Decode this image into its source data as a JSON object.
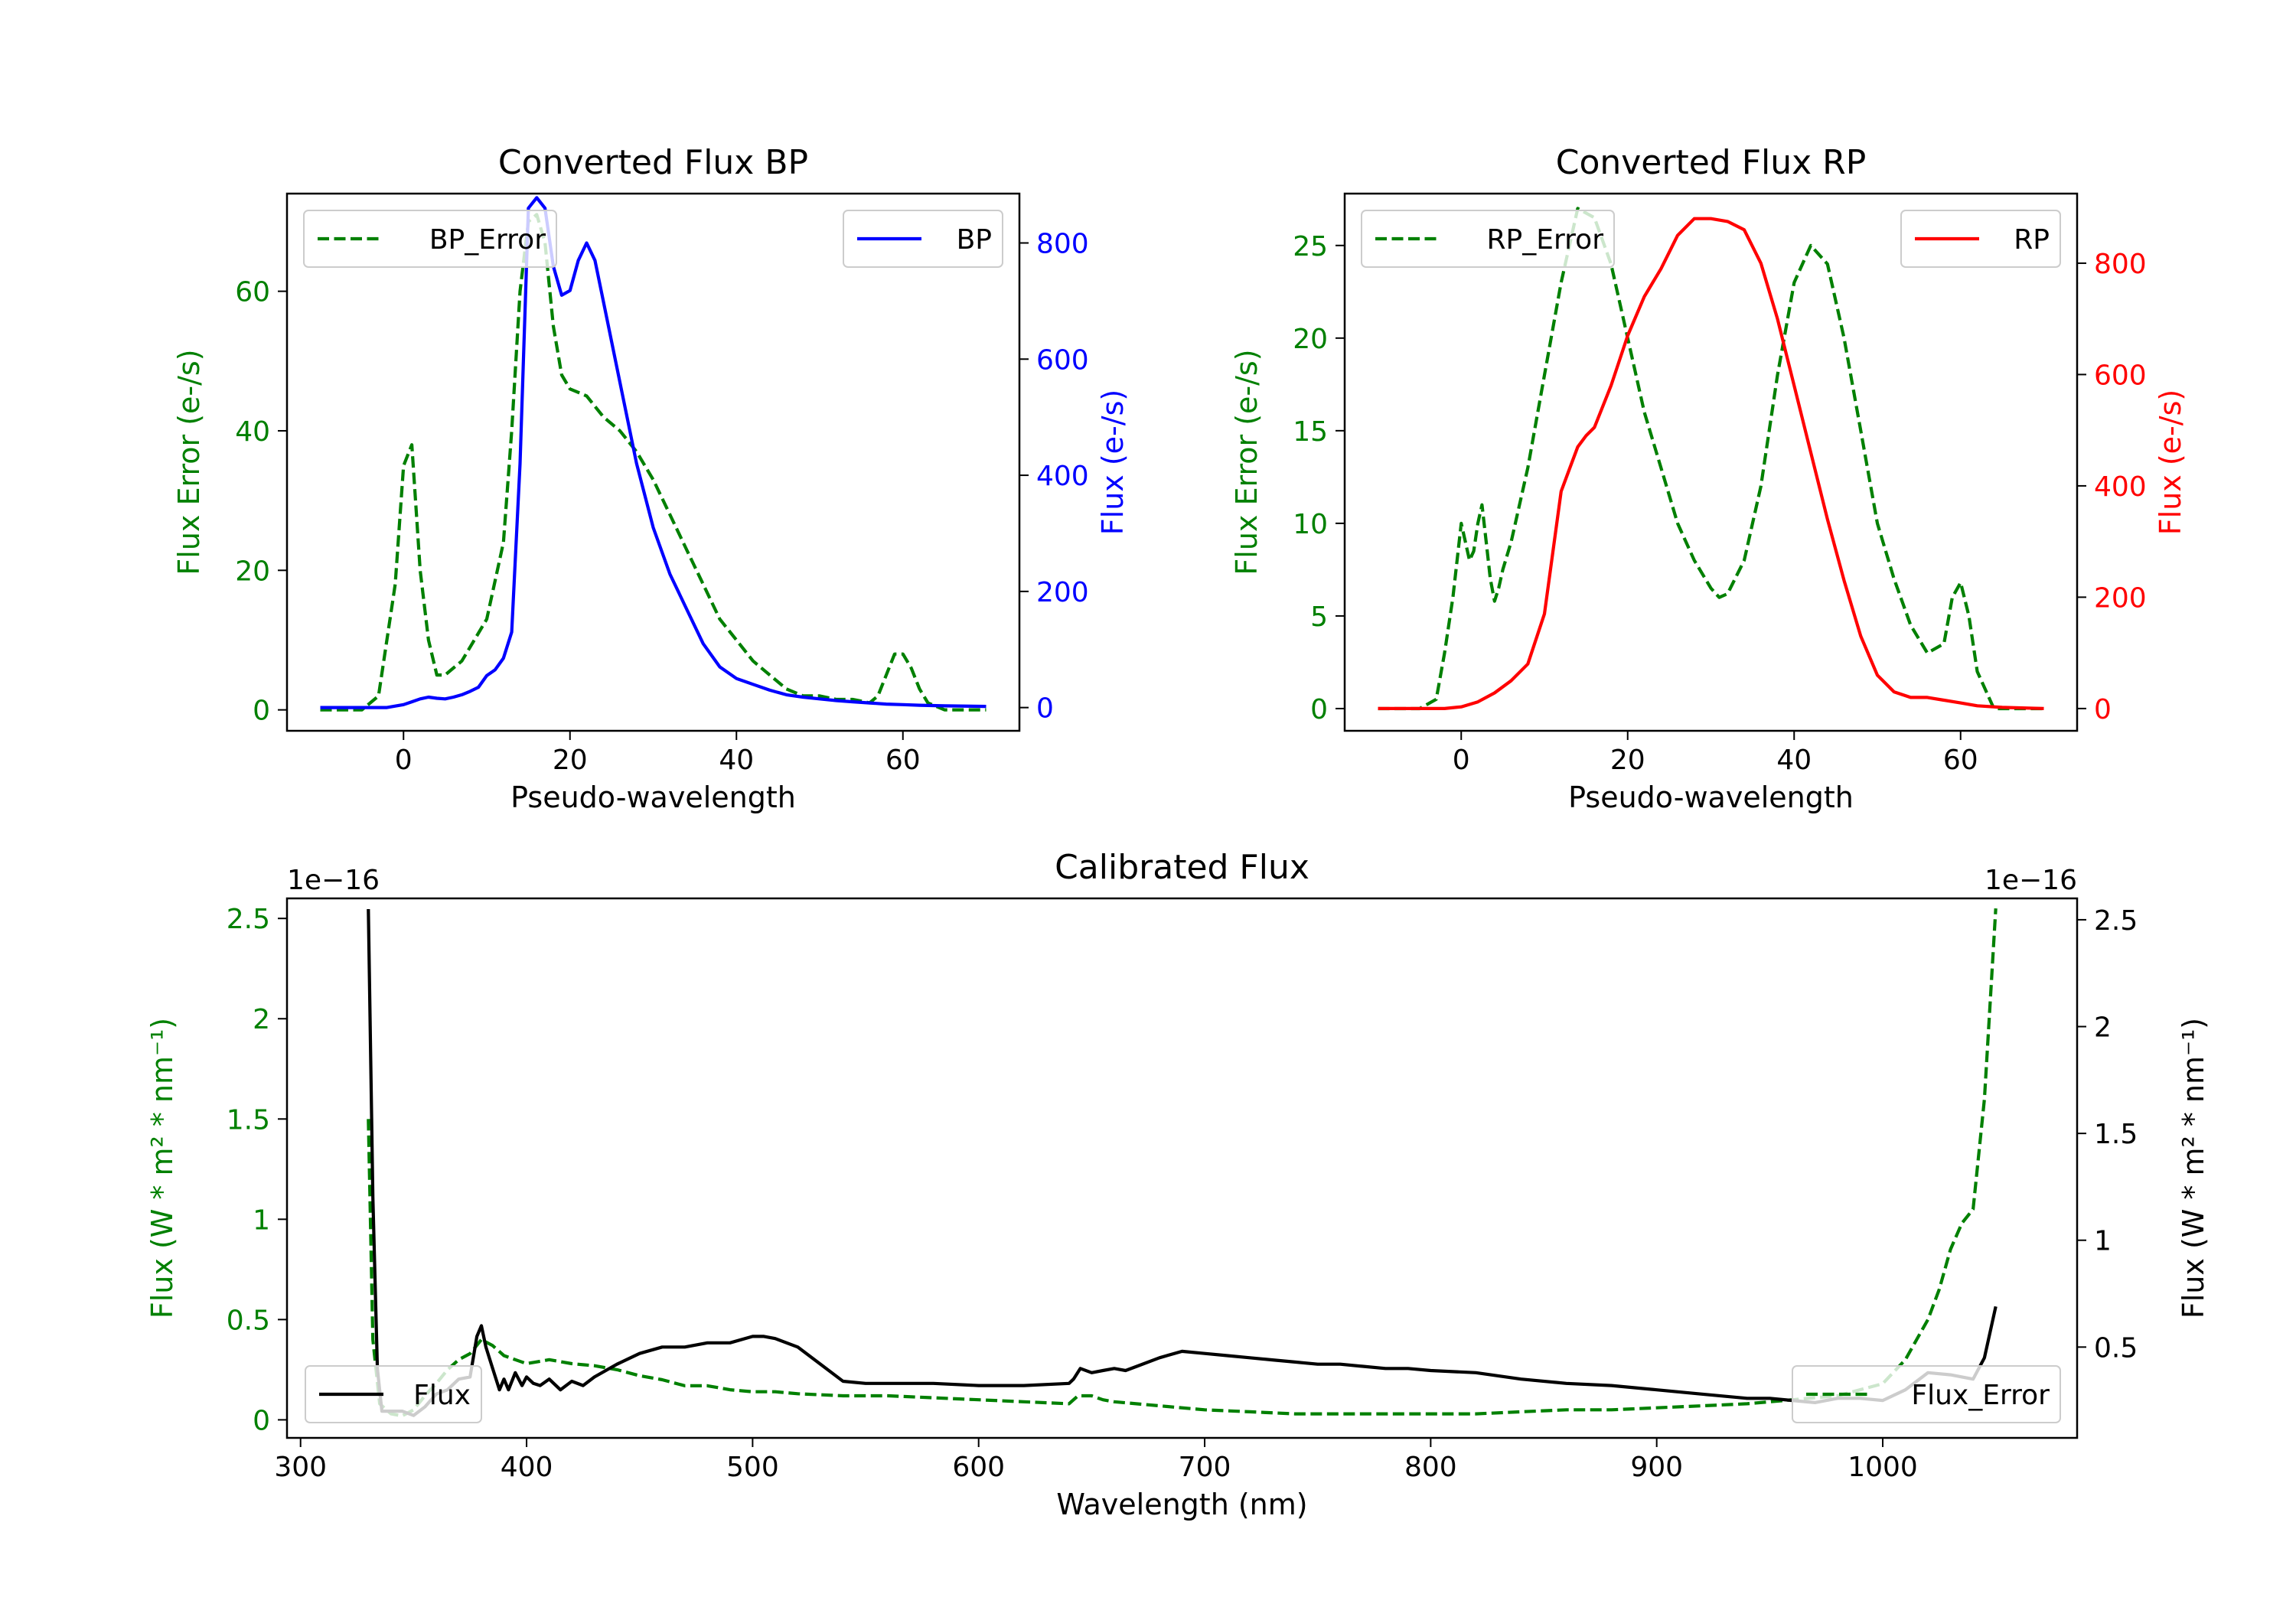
{
  "colors": {
    "green": "#008000",
    "blue": "#0000ff",
    "red": "#ff0000",
    "black": "#000000"
  },
  "chart_data": [
    {
      "type": "line",
      "id": "bp",
      "title": "Converted Flux BP",
      "xlabel": "Pseudo-wavelength",
      "ylabel_left": "Flux Error (e-/s)",
      "ylabel_right": "Flux (e-/s)",
      "xlim": [
        -14,
        74
      ],
      "ylim_left": [
        -3,
        74
      ],
      "ylim_right": [
        -40,
        885
      ],
      "xticks": [
        0,
        20,
        40,
        60
      ],
      "yticks_left": [
        0,
        20,
        40,
        60
      ],
      "yticks_right": [
        0,
        200,
        400,
        600,
        800
      ],
      "legend_left": "BP_Error",
      "legend_right": "BP",
      "series": [
        {
          "name": "BP_Error",
          "axis": "left",
          "color": "green",
          "dash": true,
          "x": [
            -10,
            -5,
            -3,
            -1,
            0,
            1,
            2,
            3,
            4,
            5,
            6,
            7,
            8,
            10,
            12,
            13,
            14,
            15,
            16,
            17,
            18,
            19,
            20,
            22,
            24,
            26,
            28,
            30,
            32,
            34,
            36,
            38,
            40,
            42,
            44,
            46,
            48,
            50,
            52,
            54,
            56,
            57,
            58,
            59,
            60,
            61,
            62,
            63,
            65,
            68,
            70
          ],
          "y": [
            0,
            0,
            2,
            18,
            35,
            38,
            20,
            10,
            5,
            5,
            6,
            7,
            9,
            13,
            24,
            40,
            60,
            70,
            71,
            67,
            55,
            48,
            46,
            45,
            42,
            40,
            37,
            33,
            28,
            23,
            18,
            13,
            10,
            7,
            5,
            3,
            2,
            2,
            1.5,
            1.5,
            1,
            2,
            5,
            8,
            8,
            6,
            3,
            1,
            0,
            0,
            0
          ]
        },
        {
          "name": "BP",
          "axis": "right",
          "color": "blue",
          "dash": false,
          "x": [
            -10,
            -5,
            -2,
            0,
            1,
            2,
            3,
            4,
            5,
            6,
            7,
            8,
            9,
            10,
            11,
            12,
            13,
            14,
            15,
            16,
            17,
            18,
            19,
            20,
            21,
            22,
            23,
            24,
            26,
            28,
            30,
            32,
            34,
            36,
            38,
            40,
            42,
            44,
            46,
            48,
            50,
            52,
            54,
            56,
            58,
            60,
            62,
            65,
            70
          ],
          "y": [
            0,
            0,
            0,
            5,
            10,
            15,
            18,
            16,
            15,
            18,
            22,
            28,
            35,
            55,
            65,
            85,
            130,
            420,
            860,
            878,
            860,
            760,
            710,
            718,
            770,
            800,
            770,
            700,
            560,
            420,
            310,
            230,
            170,
            110,
            70,
            50,
            40,
            30,
            22,
            18,
            15,
            12,
            10,
            8,
            6,
            5,
            4,
            3,
            2
          ]
        }
      ]
    },
    {
      "type": "line",
      "id": "rp",
      "title": "Converted Flux RP",
      "xlabel": "Pseudo-wavelength",
      "ylabel_left": "Flux Error (e-/s)",
      "ylabel_right": "Flux (e-/s)",
      "xlim": [
        -14,
        74
      ],
      "ylim_left": [
        -1.2,
        27.8
      ],
      "ylim_right": [
        -40,
        925
      ],
      "xticks": [
        0,
        20,
        40,
        60
      ],
      "yticks_left": [
        0,
        5,
        10,
        15,
        20,
        25
      ],
      "yticks_right": [
        0,
        200,
        400,
        600,
        800
      ],
      "legend_left": "RP_Error",
      "legend_right": "RP",
      "series": [
        {
          "name": "RP_Error",
          "axis": "left",
          "color": "green",
          "dash": true,
          "x": [
            -10,
            -5,
            -3,
            -2,
            -1,
            0,
            0.5,
            1,
            1.5,
            2,
            2.5,
            3,
            3.5,
            4,
            4.5,
            5,
            6,
            8,
            10,
            12,
            14,
            16,
            18,
            20,
            22,
            24,
            26,
            28,
            30,
            31,
            32,
            34,
            36,
            38,
            40,
            42,
            44,
            46,
            48,
            50,
            52,
            54,
            56,
            58,
            59,
            60,
            61,
            62,
            64,
            66,
            70
          ],
          "y": [
            0,
            0,
            0.5,
            3,
            6,
            10,
            9,
            8,
            8.5,
            10,
            11,
            9,
            7,
            5.8,
            6.5,
            7.5,
            9,
            13,
            18,
            23,
            27,
            26.5,
            24,
            20,
            16,
            13,
            10,
            8,
            6.5,
            6,
            6.2,
            8,
            12,
            18,
            23,
            25,
            24,
            20,
            15,
            10,
            7,
            4.5,
            3,
            3.5,
            6,
            6.8,
            5,
            2,
            0,
            0,
            0
          ]
        },
        {
          "name": "RP",
          "axis": "right",
          "color": "red",
          "dash": false,
          "x": [
            -10,
            -5,
            -2,
            0,
            2,
            4,
            6,
            8,
            10,
            11,
            12,
            13,
            14,
            15,
            16,
            18,
            20,
            22,
            24,
            26,
            28,
            30,
            32,
            34,
            36,
            38,
            40,
            42,
            44,
            46,
            48,
            50,
            52,
            54,
            56,
            58,
            60,
            62,
            65,
            70
          ],
          "y": [
            0,
            0,
            0,
            3,
            12,
            28,
            50,
            80,
            170,
            280,
            390,
            430,
            470,
            490,
            505,
            580,
            670,
            740,
            790,
            850,
            880,
            880,
            875,
            860,
            800,
            700,
            580,
            460,
            340,
            230,
            130,
            60,
            30,
            20,
            20,
            15,
            10,
            5,
            2,
            0
          ]
        }
      ]
    },
    {
      "type": "line",
      "id": "calibrated",
      "title": "Calibrated Flux",
      "xlabel": "Wavelength (nm)",
      "ylabel_left": "Flux (W * m² * nm⁻¹)",
      "ylabel_right": "Flux (W * m² * nm⁻¹)",
      "offset_left": "1e−16",
      "offset_right": "1e−16",
      "xlim": [
        294,
        1086
      ],
      "ylim_left": [
        -0.09,
        2.6
      ],
      "ylim_right": [
        0.075,
        2.6
      ],
      "xticks": [
        300,
        400,
        500,
        600,
        700,
        800,
        900,
        1000
      ],
      "yticks_left": [
        0.0,
        0.5,
        1.0,
        1.5,
        2.0,
        2.5
      ],
      "yticks_right": [
        0.5,
        1.0,
        1.5,
        2.0,
        2.5
      ],
      "legend_left": "Flux",
      "legend_right": "Flux_Error",
      "series": [
        {
          "name": "Flux_Error",
          "axis": "left",
          "color": "green",
          "dash": true,
          "x": [
            330,
            332,
            335,
            340,
            345,
            350,
            355,
            360,
            365,
            370,
            375,
            380,
            385,
            390,
            395,
            400,
            410,
            420,
            430,
            440,
            450,
            460,
            470,
            480,
            490,
            500,
            510,
            520,
            540,
            560,
            580,
            600,
            620,
            640,
            644,
            650,
            655,
            660,
            680,
            700,
            720,
            740,
            760,
            780,
            800,
            820,
            840,
            860,
            880,
            900,
            920,
            940,
            960,
            980,
            1000,
            1010,
            1015,
            1020,
            1025,
            1030,
            1035,
            1040,
            1045,
            1050
          ],
          "y": [
            1.5,
            0.4,
            0.08,
            0.03,
            0.02,
            0.05,
            0.12,
            0.18,
            0.25,
            0.3,
            0.33,
            0.4,
            0.37,
            0.32,
            0.3,
            0.28,
            0.3,
            0.28,
            0.27,
            0.25,
            0.22,
            0.2,
            0.17,
            0.17,
            0.15,
            0.14,
            0.14,
            0.13,
            0.12,
            0.12,
            0.11,
            0.1,
            0.09,
            0.08,
            0.12,
            0.12,
            0.1,
            0.09,
            0.07,
            0.05,
            0.04,
            0.03,
            0.03,
            0.03,
            0.03,
            0.03,
            0.04,
            0.05,
            0.05,
            0.06,
            0.07,
            0.08,
            0.1,
            0.12,
            0.18,
            0.3,
            0.4,
            0.5,
            0.65,
            0.85,
            0.98,
            1.05,
            1.6,
            2.55
          ]
        },
        {
          "name": "Flux",
          "axis": "right",
          "color": "black",
          "dash": false,
          "x": [
            330,
            332,
            334,
            336,
            340,
            345,
            350,
            355,
            360,
            365,
            370,
            375,
            378,
            380,
            382,
            385,
            388,
            390,
            392,
            395,
            398,
            400,
            403,
            406,
            410,
            415,
            420,
            425,
            430,
            440,
            450,
            460,
            470,
            480,
            490,
            500,
            505,
            510,
            520,
            530,
            540,
            550,
            560,
            580,
            600,
            620,
            640,
            642,
            645,
            650,
            655,
            660,
            665,
            670,
            680,
            690,
            700,
            710,
            720,
            730,
            740,
            750,
            760,
            770,
            780,
            790,
            800,
            820,
            840,
            860,
            880,
            900,
            920,
            940,
            950,
            960,
            970,
            980,
            990,
            1000,
            1010,
            1020,
            1030,
            1040,
            1045,
            1050
          ],
          "y": [
            2.55,
            1.2,
            0.4,
            0.2,
            0.2,
            0.2,
            0.18,
            0.22,
            0.28,
            0.3,
            0.35,
            0.36,
            0.55,
            0.6,
            0.5,
            0.4,
            0.3,
            0.35,
            0.3,
            0.38,
            0.32,
            0.36,
            0.33,
            0.32,
            0.35,
            0.3,
            0.34,
            0.32,
            0.36,
            0.42,
            0.47,
            0.5,
            0.5,
            0.52,
            0.52,
            0.55,
            0.55,
            0.54,
            0.5,
            0.42,
            0.34,
            0.33,
            0.33,
            0.33,
            0.32,
            0.32,
            0.33,
            0.35,
            0.4,
            0.38,
            0.39,
            0.4,
            0.39,
            0.41,
            0.45,
            0.48,
            0.47,
            0.46,
            0.45,
            0.44,
            0.43,
            0.42,
            0.42,
            0.41,
            0.4,
            0.4,
            0.39,
            0.38,
            0.35,
            0.33,
            0.32,
            0.3,
            0.28,
            0.26,
            0.26,
            0.25,
            0.24,
            0.26,
            0.26,
            0.25,
            0.3,
            0.38,
            0.37,
            0.35,
            0.45,
            0.69
          ]
        }
      ]
    }
  ]
}
